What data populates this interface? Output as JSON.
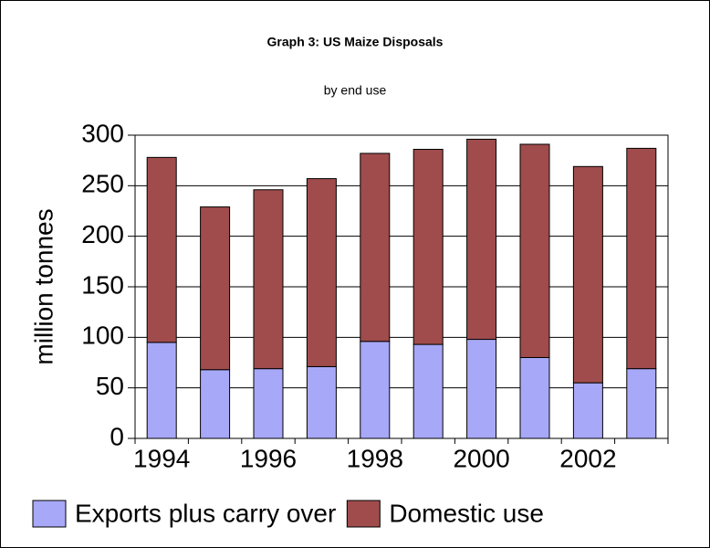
{
  "chart_data": {
    "type": "stacked-bar",
    "title": "Graph 3: US Maize Disposals",
    "subtitle": "by end use",
    "y_label": "million tonnes",
    "categories": [
      "1994",
      null,
      "1996",
      null,
      "1998",
      null,
      "2000",
      null,
      "2002",
      null
    ],
    "series": [
      {
        "name": "Exports plus carry over",
        "color": "#a8a8f8",
        "values": [
          95,
          68,
          69,
          71,
          96,
          93,
          98,
          80,
          55,
          69
        ]
      },
      {
        "name": "Domestic use",
        "color": "#a04c4c",
        "values": [
          183,
          161,
          177,
          186,
          186,
          193,
          198,
          211,
          214,
          218
        ]
      }
    ],
    "ylim": [
      0,
      300
    ],
    "yticks": [
      0,
      50,
      100,
      150,
      200,
      250,
      300
    ],
    "grid": true
  }
}
